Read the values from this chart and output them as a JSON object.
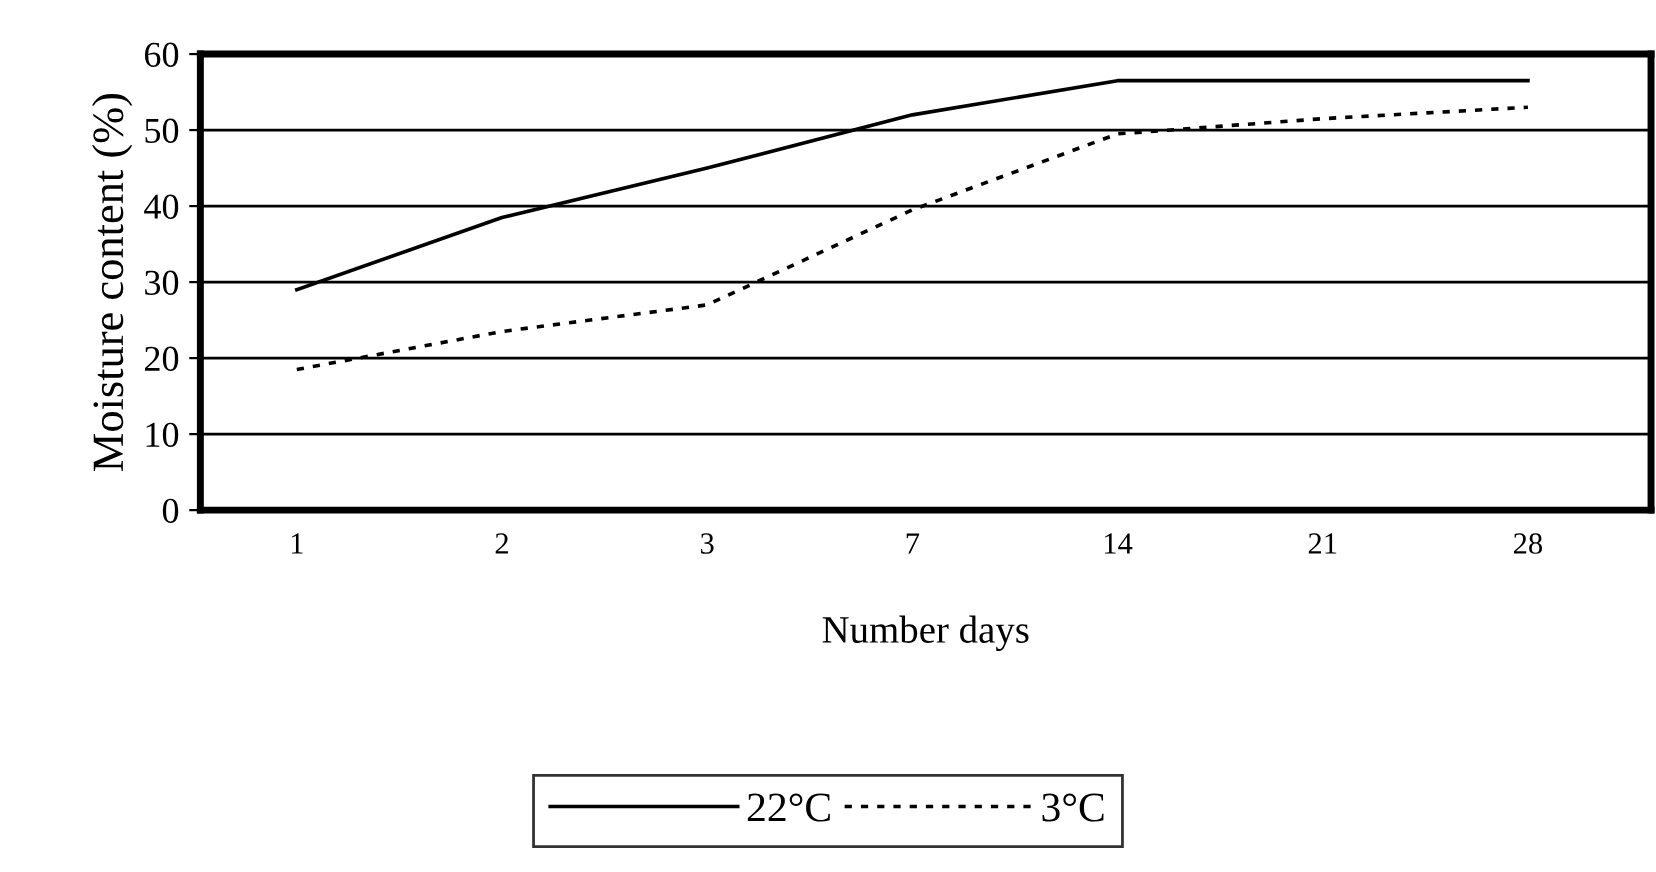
{
  "chart_data": {
    "type": "line",
    "xlabel": "Number days",
    "ylabel": "Moisture content (%)",
    "categories": [
      "1",
      "2",
      "3",
      "7",
      "14",
      "21",
      "28"
    ],
    "series": [
      {
        "name": "22°C",
        "color": "#000000",
        "line_style": "solid",
        "values": [
          29,
          38.5,
          45,
          52,
          56.5,
          56.5,
          56.5
        ]
      },
      {
        "name": "3°C",
        "color": "#000000",
        "line_style": "dotted",
        "values": [
          18.5,
          23.5,
          27,
          39.5,
          49.5,
          51.5,
          53
        ]
      }
    ],
    "ylim": [
      0,
      60
    ],
    "yticks": [
      0,
      10,
      20,
      30,
      40,
      50,
      60
    ],
    "grid": "y",
    "legend": "bottom",
    "marker": "none"
  }
}
